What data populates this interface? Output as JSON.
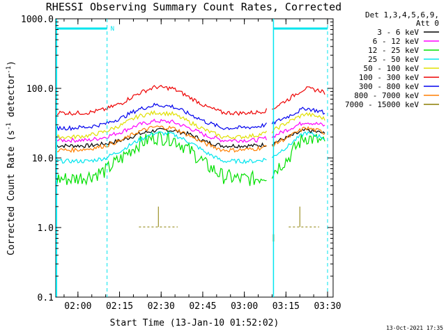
{
  "chart_data": {
    "type": "line",
    "title": "RHESSI Observing Summary Count Rates, Corrected",
    "xlabel": "Start Time (13-Jan-10 01:52:02)",
    "ylabel": "Corrected Count Rate (s",
    "ylabel_sup": "-1",
    "ylabel_mid": " detector",
    "ylabel_sup2": "-1",
    "ylabel_end": ")",
    "y_scale": "log",
    "ylim": [
      0.1,
      1000.0
    ],
    "x_range_minutes": [
      "01:52",
      "03:32"
    ],
    "x_ticks": [
      "02:00",
      "02:15",
      "02:30",
      "02:45",
      "03:00",
      "03:15",
      "03:30"
    ],
    "y_ticks": [
      "0.1",
      "1.0",
      "10.0",
      "100.0",
      "1000.0"
    ],
    "grid": false,
    "legend_header": [
      "Det 1,3,4,5,6,9,",
      "Att 0"
    ],
    "legend_position": "right",
    "timestamp": "13-Oct-2021 17:35",
    "night_marker": "N",
    "annotation_colors": {
      "boundary": "#00e5ee"
    },
    "series": [
      {
        "name": "3 - 6 keV",
        "color": "#000000",
        "values": [
          15,
          15,
          15,
          16,
          18,
          22,
          25,
          25,
          22,
          17,
          15,
          15,
          15,
          16,
          20,
          25,
          23,
          19
        ]
      },
      {
        "name": "6 - 12 keV",
        "color": "#ff00ff",
        "values": [
          18,
          18,
          18,
          20,
          24,
          30,
          34,
          33,
          27,
          21,
          18,
          18,
          18,
          20,
          26,
          33,
          30,
          25
        ]
      },
      {
        "name": "12 - 25 keV",
        "color": "#00e000",
        "values": [
          5,
          5,
          5.5,
          6.5,
          10,
          16,
          20,
          19,
          13,
          8,
          5.5,
          5,
          5,
          6,
          10,
          20,
          17,
          11
        ]
      },
      {
        "name": "25 - 50 keV",
        "color": "#00e5ee",
        "values": [
          9,
          9,
          9,
          10,
          13,
          18,
          23,
          22,
          17,
          12,
          9,
          9,
          9,
          10,
          15,
          23,
          20,
          15
        ]
      },
      {
        "name": "50 - 100 keV",
        "color": "#e0e000",
        "values": [
          20,
          20,
          21,
          24,
          30,
          40,
          45,
          43,
          33,
          25,
          20,
          20,
          21,
          24,
          33,
          43,
          38,
          29
        ]
      },
      {
        "name": "100 - 300 keV",
        "color": "#ee0000",
        "values": [
          45,
          44,
          45,
          50,
          62,
          85,
          105,
          100,
          75,
          55,
          45,
          44,
          45,
          50,
          70,
          100,
          92,
          68
        ]
      },
      {
        "name": "300 - 800 keV",
        "color": "#0000ee",
        "values": [
          27,
          27,
          28,
          31,
          38,
          50,
          58,
          55,
          43,
          33,
          27,
          27,
          28,
          31,
          40,
          52,
          46,
          35
        ]
      },
      {
        "name": "800 - 7000 keV",
        "color": "#ff7f00",
        "values": [
          13,
          13,
          13.5,
          15,
          18,
          24,
          28,
          27,
          21,
          16,
          13,
          13,
          13.5,
          15,
          20,
          27,
          24,
          18
        ]
      },
      {
        "name": "7000 - 15000 keV",
        "color": "#8b7d00",
        "values": [
          null,
          null,
          null,
          null,
          null,
          1.02,
          1.02,
          1.02,
          null,
          null,
          null,
          null,
          null,
          null,
          1.02,
          1.02,
          null,
          null
        ]
      }
    ],
    "x_minutes": [
      0,
      6,
      12,
      18,
      24,
      30,
      36,
      42,
      48,
      54,
      60,
      66,
      72,
      78,
      84,
      90,
      96,
      100
    ]
  }
}
